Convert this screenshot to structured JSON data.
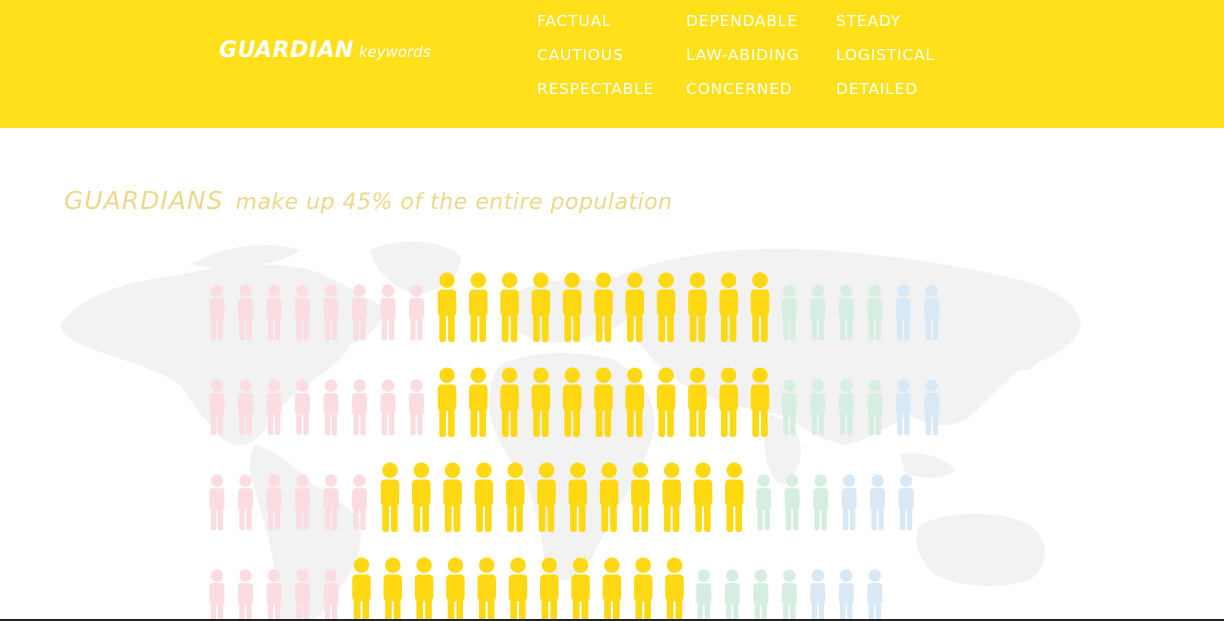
{
  "banner": {
    "brand": {
      "main": "GUARDIAN",
      "sub": "keywords"
    },
    "keywords": [
      [
        "FACTUAL",
        "DEPENDABLE",
        "STEADY"
      ],
      [
        "CAUTIOUS",
        "LAW-ABIDING",
        "LOGISTICAL"
      ],
      [
        "RESPECTABLE",
        "CONCERNED",
        "DETAILED"
      ]
    ]
  },
  "headline": {
    "main": "GUARDIANS",
    "rest": "make up 45% of the entire population"
  },
  "colors": {
    "banner": "#FFE01A",
    "guardian": "#FFD814",
    "pink": "#FADCE1",
    "green": "#D6EEE2",
    "blue": "#D8E8F4",
    "map": "#F2F2F2"
  },
  "pictogram": {
    "rows": [
      {
        "groups": [
          {
            "type": "pink",
            "count": 8
          },
          {
            "type": "guardian",
            "count": 11
          },
          {
            "type": "green",
            "count": 4
          },
          {
            "type": "blue",
            "count": 2
          }
        ]
      },
      {
        "groups": [
          {
            "type": "pink",
            "count": 8
          },
          {
            "type": "guardian",
            "count": 11
          },
          {
            "type": "green",
            "count": 4
          },
          {
            "type": "blue",
            "count": 2
          }
        ]
      },
      {
        "groups": [
          {
            "type": "pink",
            "count": 6
          },
          {
            "type": "guardian",
            "count": 12
          },
          {
            "type": "green",
            "count": 3
          },
          {
            "type": "blue",
            "count": 3
          }
        ]
      },
      {
        "groups": [
          {
            "type": "pink",
            "count": 5
          },
          {
            "type": "guardian",
            "count": 11
          },
          {
            "type": "green",
            "count": 4
          },
          {
            "type": "blue",
            "count": 3
          }
        ]
      }
    ]
  }
}
